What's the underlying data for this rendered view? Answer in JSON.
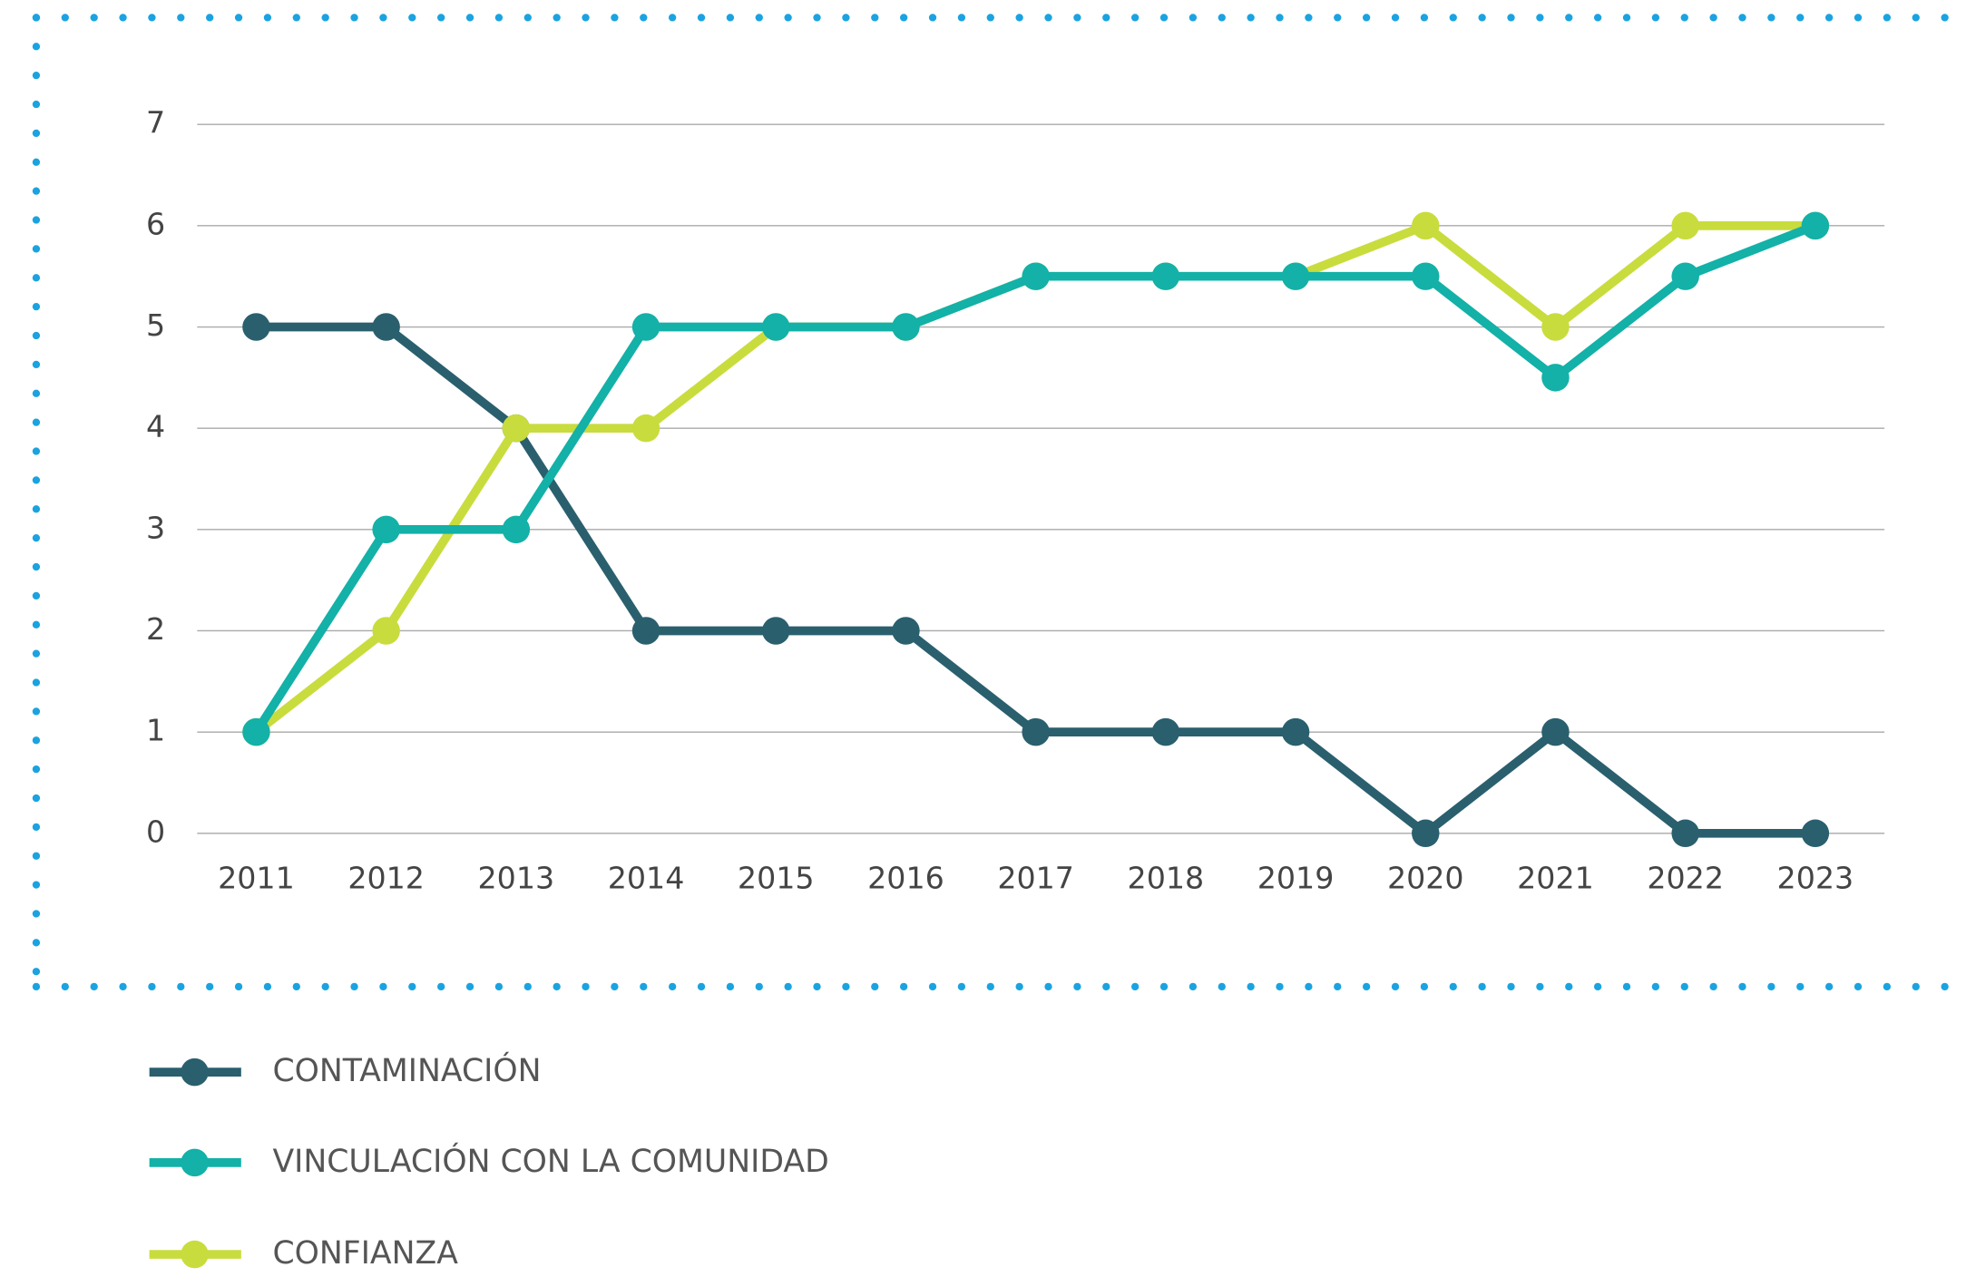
{
  "chart_data": {
    "type": "line",
    "categories": [
      "2011",
      "2012",
      "2013",
      "2014",
      "2015",
      "2016",
      "2017",
      "2018",
      "2019",
      "2020",
      "2021",
      "2022",
      "2023"
    ],
    "series": [
      {
        "name": "CONTAMINACIÓN",
        "color": "#2a5f6e",
        "values": [
          5,
          5,
          4,
          2,
          2,
          2,
          1,
          1,
          1,
          0,
          1,
          0,
          0
        ]
      },
      {
        "name": "VINCULACIÓN CON LA COMUNIDAD",
        "color": "#13b1a7",
        "values": [
          1,
          3,
          3,
          5,
          5,
          5,
          5.5,
          5.5,
          5.5,
          5.5,
          4.5,
          5.5,
          6
        ]
      },
      {
        "name": "CONFIANZA",
        "color": "#c9dc3d",
        "values": [
          1,
          2,
          4,
          4,
          5,
          5,
          5.5,
          5.5,
          5.5,
          6,
          5,
          6,
          6
        ]
      }
    ],
    "ylim": [
      0,
      7
    ],
    "yticks": [
      0,
      1,
      2,
      3,
      4,
      5,
      6,
      7
    ],
    "grid": true
  }
}
